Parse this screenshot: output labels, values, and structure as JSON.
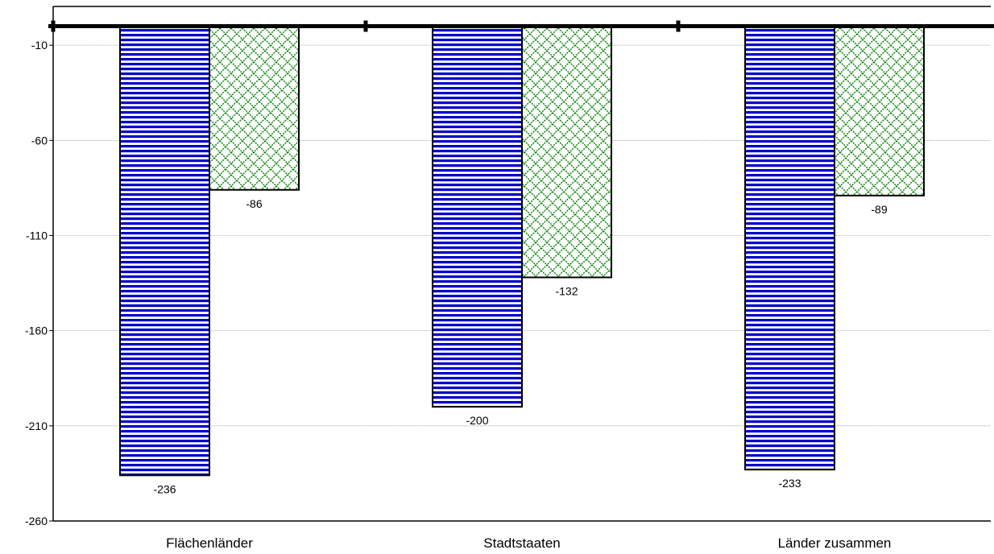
{
  "chart_data": {
    "type": "bar",
    "title": "",
    "xlabel": "",
    "ylabel": "",
    "categories": [
      "Flächenländer",
      "Stadtstaaten",
      "Länder zusammen"
    ],
    "series": [
      {
        "values": [
          -236,
          -200,
          -233
        ],
        "color": "#0000cc",
        "pattern": "horizontal-stripes"
      },
      {
        "values": [
          -86,
          -132,
          -89
        ],
        "color": "#008000",
        "pattern": "crosshatch"
      }
    ],
    "yticks": [
      -10,
      -60,
      -110,
      -160,
      -210,
      -260
    ],
    "ylim": [
      -260,
      0
    ],
    "grid": true,
    "legend": "none"
  }
}
